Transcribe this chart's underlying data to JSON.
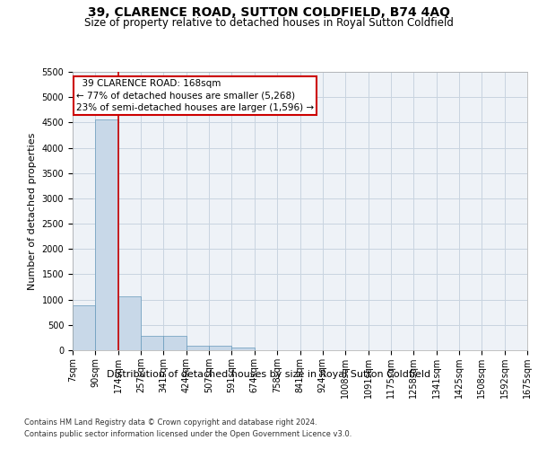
{
  "title": "39, CLARENCE ROAD, SUTTON COLDFIELD, B74 4AQ",
  "subtitle": "Size of property relative to detached houses in Royal Sutton Coldfield",
  "xlabel": "Distribution of detached houses by size in Royal Sutton Coldfield",
  "ylabel": "Number of detached properties",
  "footer_line1": "Contains HM Land Registry data © Crown copyright and database right 2024.",
  "footer_line2": "Contains public sector information licensed under the Open Government Licence v3.0.",
  "bin_labels": [
    "7sqm",
    "90sqm",
    "174sqm",
    "257sqm",
    "341sqm",
    "424sqm",
    "507sqm",
    "591sqm",
    "674sqm",
    "758sqm",
    "841sqm",
    "924sqm",
    "1008sqm",
    "1091sqm",
    "1175sqm",
    "1258sqm",
    "1341sqm",
    "1425sqm",
    "1508sqm",
    "1592sqm",
    "1675sqm"
  ],
  "bar_values": [
    880,
    4560,
    1060,
    290,
    290,
    90,
    90,
    55,
    0,
    0,
    0,
    0,
    0,
    0,
    0,
    0,
    0,
    0,
    0,
    0
  ],
  "bar_color": "#c8d8e8",
  "bar_edge_color": "#6699bb",
  "grid_color": "#c8d4e0",
  "bg_color": "#eef2f7",
  "vline_color": "#cc0000",
  "annotation_box_color": "#cc0000",
  "ylim": [
    0,
    5500
  ],
  "yticks": [
    0,
    500,
    1000,
    1500,
    2000,
    2500,
    3000,
    3500,
    4000,
    4500,
    5000,
    5500
  ],
  "title_fontsize": 10,
  "subtitle_fontsize": 8.5,
  "annotation_fontsize": 7.5,
  "ylabel_fontsize": 8,
  "xlabel_fontsize": 8,
  "tick_fontsize": 7,
  "footer_fontsize": 6
}
